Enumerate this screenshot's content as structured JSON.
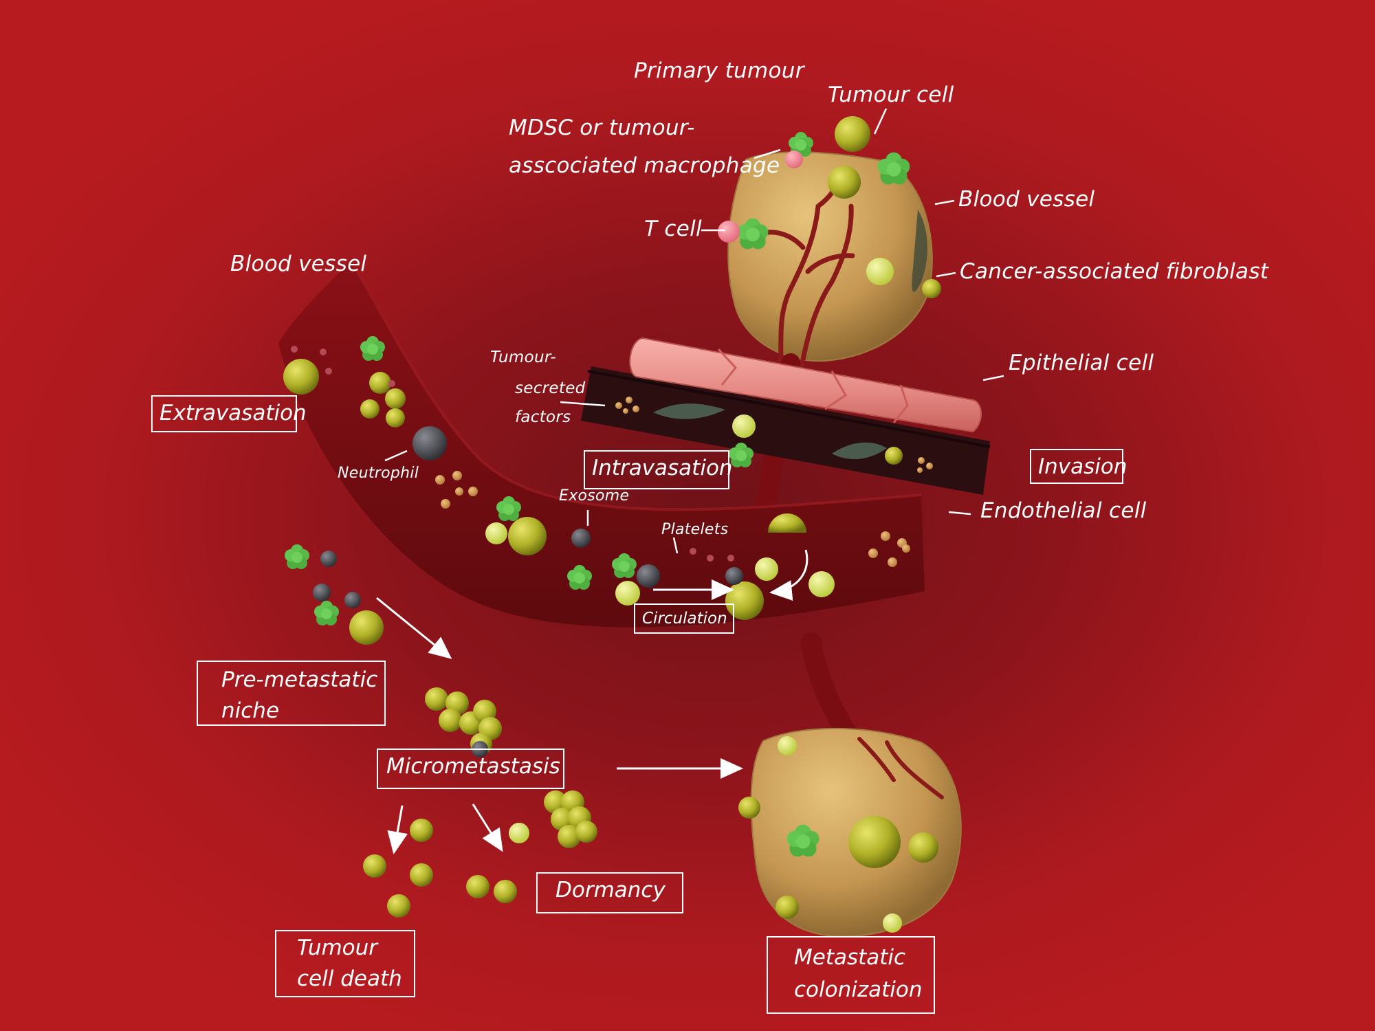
{
  "labels": {
    "primary_tumour": "Primary tumour",
    "tumour_cell": "Tumour cell",
    "mdsc_line1": "MDSC or tumour-",
    "mdsc_line2": "asscociated macrophage",
    "t_cell": "T cell",
    "blood_vessel_right": "Blood vessel",
    "caf": "Cancer-associated fibroblast",
    "blood_vessel_left": "Blood vessel",
    "tumour_secreted_1": "Tumour-",
    "tumour_secreted_2": "secreted",
    "tumour_secreted_3": "factors",
    "epithelial_cell": "Epithelial cell",
    "neutrophil": "Neutrophil",
    "exosome": "Exosome",
    "platelets": "Platelets",
    "endothelial_cell": "Endothelial cell"
  },
  "stages": {
    "extravasation": "Extravasation",
    "intravasation": "Intravasation",
    "invasion": "Invasion",
    "circulation": "Circulation",
    "pre_metastatic_1": "Pre-metastatic",
    "pre_metastatic_2": "niche",
    "micrometastasis": "Micrometastasis",
    "dormancy": "Dormancy",
    "tumour_death_1": "Tumour",
    "tumour_death_2": "cell death",
    "metastatic_1": "Metastatic",
    "metastatic_2": "colonization"
  },
  "colors": {
    "background": "#b81b1f",
    "tumour_mass": "#c89a50",
    "vessel": "#7a0d12",
    "epithelium": "#e98f8a",
    "tumour_cell": "#b3b428",
    "immune_cell": "#5bbf4a",
    "neutrophil": "#4a4a52",
    "platelet": "#a83b46",
    "exosome": "#d39a55",
    "text": "#ffffff"
  }
}
